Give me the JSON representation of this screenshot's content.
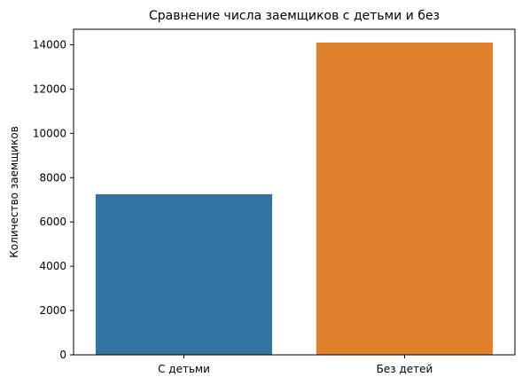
{
  "chart_data": {
    "type": "bar",
    "title": "Сравнение числа заемщиков с детьми и без",
    "xlabel": "",
    "ylabel": "Количество заемщиков",
    "categories": [
      "С детьми",
      "Без детей"
    ],
    "values": [
      7250,
      14100
    ],
    "colors": [
      "#3274a1",
      "#e1812c"
    ],
    "ylim": [
      0,
      14700
    ],
    "yticks": [
      0,
      2000,
      4000,
      6000,
      8000,
      10000,
      12000,
      14000
    ],
    "grid": false,
    "legend": "none"
  }
}
